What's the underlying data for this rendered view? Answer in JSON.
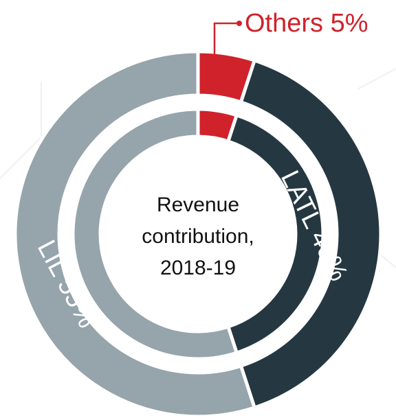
{
  "chart_data": {
    "type": "pie",
    "title": [
      "Revenue",
      "contribution,",
      "2018-19"
    ],
    "categories": [
      "Others",
      "LATL",
      "LIL"
    ],
    "values": [
      5,
      40,
      55
    ],
    "value_labels": [
      "5%",
      "40%",
      "55%"
    ],
    "colors": [
      "#d0222b",
      "#253841",
      "#96a4ab"
    ]
  }
}
